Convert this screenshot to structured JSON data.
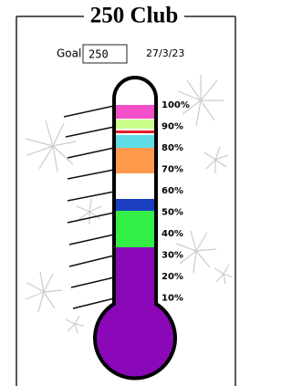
{
  "header": {
    "title": "250 Club"
  },
  "goal": {
    "label": "Goal:",
    "value": "250"
  },
  "date": "27/3/23",
  "scale": {
    "labels": [
      "100%",
      "90%",
      "80%",
      "70%",
      "60%",
      "50%",
      "40%",
      "30%",
      "20%",
      "10%"
    ]
  }
}
